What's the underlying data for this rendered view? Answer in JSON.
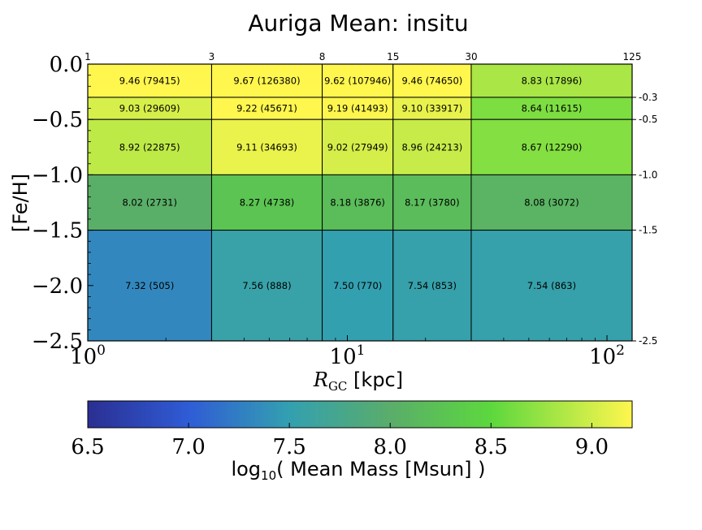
{
  "chart_data": {
    "type": "heatmap",
    "title": "Auriga Mean: insitu",
    "xlabel": "R_GC [kpc]",
    "ylabel": "[Fe/H]",
    "x_scale": "log",
    "xlim": [
      1,
      125
    ],
    "ylim": [
      -2.5,
      0.0
    ],
    "x_bin_edges": [
      1,
      3,
      8,
      15,
      30,
      125
    ],
    "y_bin_edges": [
      0.0,
      -0.3,
      -0.5,
      -1.0,
      -1.5,
      -2.5
    ],
    "x_tick_labels": [
      "10^0",
      "10^1",
      "10^2"
    ],
    "y_tick_labels": [
      "0.0",
      "−0.5",
      "−1.0",
      "−1.5",
      "−2.0",
      "−2.5"
    ],
    "top_edge_labels": [
      "1",
      "3",
      "8",
      "15",
      "30",
      "125"
    ],
    "right_edge_labels": [
      "-0.3",
      "-0.5",
      "-1.0",
      "-1.5",
      "-2.5"
    ],
    "rows": [
      {
        "values": [
          9.46,
          9.67,
          9.62,
          9.46,
          8.83
        ],
        "counts": [
          79415,
          126380,
          107946,
          74650,
          17896
        ],
        "labels": [
          "9.46 (79415)",
          "9.67 (126380)",
          "9.62 (107946)",
          "9.46 (74650)",
          "8.83 (17896)"
        ]
      },
      {
        "values": [
          9.03,
          9.22,
          9.19,
          9.1,
          8.64
        ],
        "counts": [
          29609,
          45671,
          41493,
          33917,
          11615
        ],
        "labels": [
          "9.03 (29609)",
          "9.22 (45671)",
          "9.19 (41493)",
          "9.10 (33917)",
          "8.64 (11615)"
        ]
      },
      {
        "values": [
          8.92,
          9.11,
          9.02,
          8.96,
          8.67
        ],
        "counts": [
          22875,
          34693,
          27949,
          24213,
          12290
        ],
        "labels": [
          "8.92 (22875)",
          "9.11 (34693)",
          "9.02 (27949)",
          "8.96 (24213)",
          "8.67 (12290)"
        ]
      },
      {
        "values": [
          8.02,
          8.27,
          8.18,
          8.17,
          8.08
        ],
        "counts": [
          2731,
          4738,
          3876,
          3780,
          3072
        ],
        "labels": [
          "8.02 (2731)",
          "8.27 (4738)",
          "8.18 (3876)",
          "8.17 (3780)",
          "8.08 (3072)"
        ]
      },
      {
        "values": [
          7.32,
          7.56,
          7.5,
          7.54,
          7.54
        ],
        "counts": [
          505,
          888,
          770,
          853,
          863
        ],
        "labels": [
          "7.32 (505)",
          "7.56 (888)",
          "7.50 (770)",
          "7.54 (853)",
          "7.54 (863)"
        ]
      }
    ],
    "colorbar": {
      "label": "log10( Mean Mass [Msun] )",
      "range": [
        6.5,
        9.2
      ],
      "ticks": [
        6.5,
        7.0,
        7.5,
        8.0,
        8.5,
        9.0
      ],
      "tick_labels": [
        "6.5",
        "7.0",
        "7.5",
        "8.0",
        "8.5",
        "9.0"
      ],
      "colormap": "viridis-like (blue-teal-green-yellow)",
      "stops": [
        {
          "v": 6.5,
          "color": "#2b2f92"
        },
        {
          "v": 7.0,
          "color": "#2f5cd6"
        },
        {
          "v": 7.5,
          "color": "#33a0b0"
        },
        {
          "v": 8.0,
          "color": "#5aad6a"
        },
        {
          "v": 8.5,
          "color": "#5cd83e"
        },
        {
          "v": 9.2,
          "color": "#fff64e"
        }
      ]
    }
  }
}
